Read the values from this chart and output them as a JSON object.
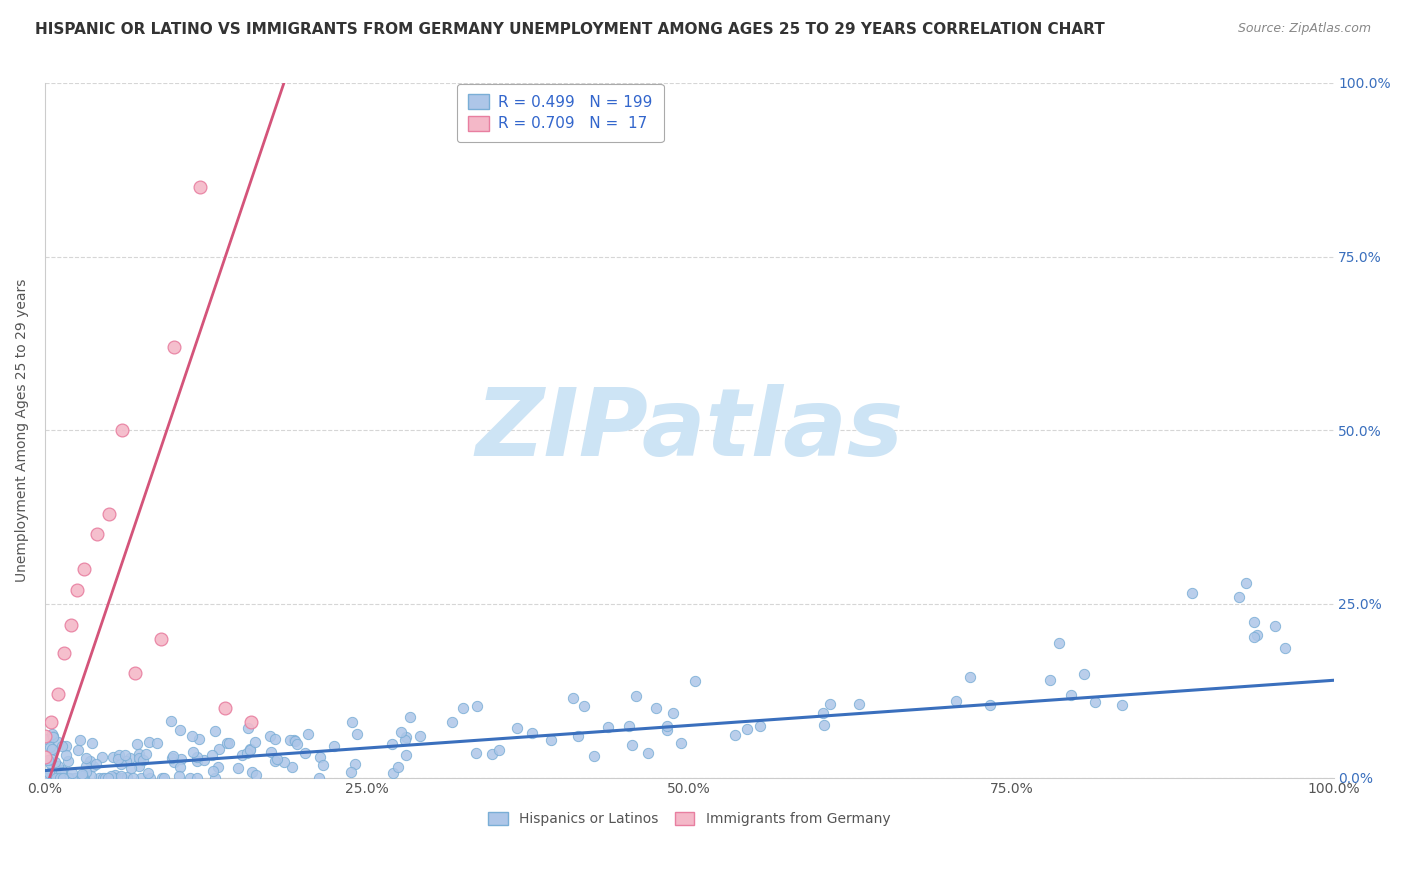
{
  "title": "HISPANIC OR LATINO VS IMMIGRANTS FROM GERMANY UNEMPLOYMENT AMONG AGES 25 TO 29 YEARS CORRELATION CHART",
  "source": "Source: ZipAtlas.com",
  "ylabel": "Unemployment Among Ages 25 to 29 years",
  "watermark": "ZIPatlas",
  "series1": {
    "label": "Hispanics or Latinos",
    "color": "#aec6e8",
    "edge_color": "#7aaed6",
    "R": 0.499,
    "N": 199,
    "trend_color": "#3a6fbd"
  },
  "series2": {
    "label": "Immigrants from Germany",
    "color": "#f4b8c8",
    "edge_color": "#e87fa0",
    "R": 0.709,
    "N": 17,
    "trend_color": "#d4547a"
  },
  "xlim": [
    0.0,
    1.0
  ],
  "ylim": [
    0.0,
    1.0
  ],
  "xticks": [
    0.0,
    0.25,
    0.5,
    0.75,
    1.0
  ],
  "yticks": [
    0.0,
    0.25,
    0.5,
    0.75,
    1.0
  ],
  "xtick_labels": [
    "0.0%",
    "25.0%",
    "50.0%",
    "75.0%",
    "100.0%"
  ],
  "ytick_labels_right": [
    "0.0%",
    "25.0%",
    "50.0%",
    "75.0%",
    "100.0%"
  ],
  "background_color": "#ffffff",
  "grid_color": "#cccccc",
  "title_color": "#333333",
  "title_fontsize": 11,
  "axis_label_color": "#555555",
  "legend_R_N_color": "#3366cc",
  "watermark_color": "#cde4f5",
  "watermark_fontsize": 68,
  "seed": 42,
  "s2_points_x": [
    0.0,
    0.0,
    0.005,
    0.01,
    0.015,
    0.02,
    0.025,
    0.03,
    0.04,
    0.05,
    0.06,
    0.07,
    0.09,
    0.1,
    0.12,
    0.14,
    0.16
  ],
  "s2_points_y": [
    0.03,
    0.06,
    0.08,
    0.12,
    0.18,
    0.22,
    0.27,
    0.3,
    0.35,
    0.38,
    0.5,
    0.15,
    0.2,
    0.62,
    0.85,
    0.1,
    0.08
  ],
  "s2_trend_slope": 5.5,
  "s2_trend_intercept": -0.02,
  "s1_trend_slope": 0.13,
  "s1_trend_intercept": 0.01
}
